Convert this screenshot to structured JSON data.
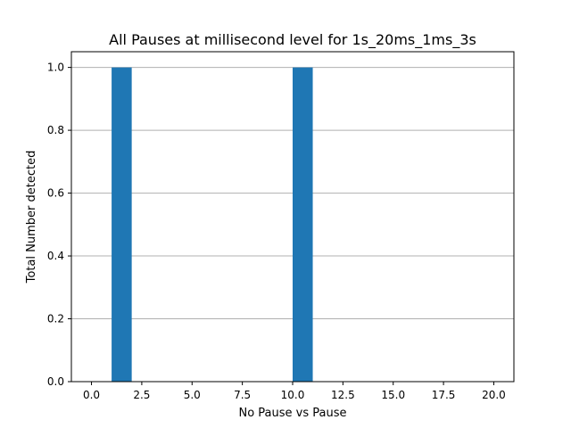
{
  "chart_data": {
    "type": "bar",
    "title": "All Pauses at millisecond level for 1s_20ms_1ms_3s",
    "xlabel": "No Pause vs Pause",
    "ylabel": "Total Number detected",
    "xlim": [
      -1,
      21
    ],
    "ylim": [
      0,
      1.05
    ],
    "grid": "y",
    "bar_color": "#1f77b4",
    "bars": [
      {
        "x0": 1,
        "x1": 2,
        "value": 1.0
      },
      {
        "x0": 10,
        "x1": 11,
        "value": 1.0
      }
    ],
    "x_ticks": [
      0,
      2.5,
      5,
      7.5,
      10,
      12.5,
      15,
      17.5,
      20
    ],
    "x_tick_labels": [
      "0.0",
      "2.5",
      "5.0",
      "7.5",
      "10.0",
      "12.5",
      "15.0",
      "17.5",
      "20.0"
    ],
    "y_ticks": [
      0,
      0.2,
      0.4,
      0.6,
      0.8,
      1.0
    ],
    "y_tick_labels": [
      "0.0",
      "0.2",
      "0.4",
      "0.6",
      "0.8",
      "1.0"
    ]
  }
}
